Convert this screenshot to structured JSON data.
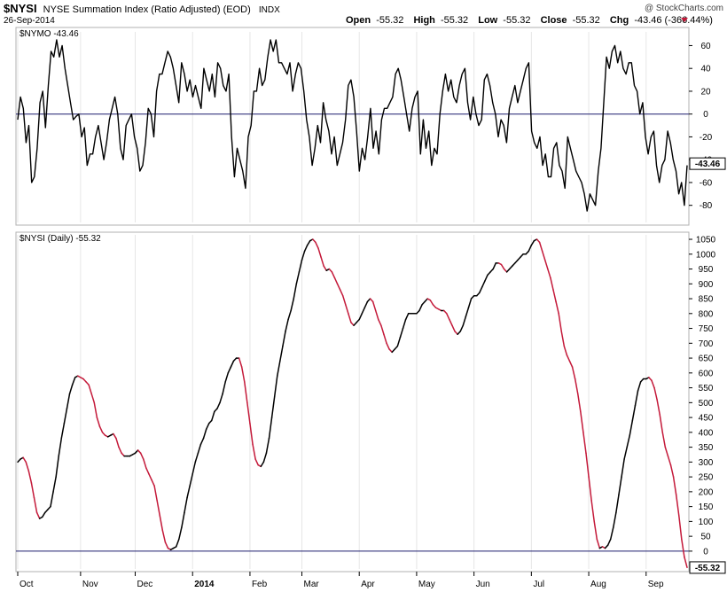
{
  "header": {
    "symbol": "$NYSI",
    "description": "NYSE Summation Index (Ratio Adjusted) (EOD)",
    "exchange": "INDX",
    "date": "26-Sep-2014",
    "open_label": "Open",
    "open_value": "-55.32",
    "high_label": "High",
    "high_value": "-55.32",
    "low_label": "Low",
    "low_value": "-55.32",
    "close_label": "Close",
    "close_value": "-55.32",
    "chg_label": "Chg",
    "chg_value": "-43.46 (-366.44%)",
    "watermark": "@ StockCharts.com",
    "down_color": "#c41a3a"
  },
  "chart_data": [
    {
      "type": "line",
      "panel": "top",
      "legend": "$NYMO -43.46",
      "last_value_badge": "-43.46",
      "line_color": "#000000",
      "zero_line_color": "#1c1c6e",
      "ylim": [
        -95,
        72
      ],
      "yticks": [
        60,
        40,
        20,
        0,
        -20,
        -40,
        -60,
        -80
      ],
      "yticklabels": [
        "60",
        "40",
        "20",
        "0",
        "-20",
        "-40",
        "-60",
        "-80"
      ],
      "last_value": -43.46,
      "values": [
        -5,
        15,
        5,
        -25,
        -10,
        -60,
        -55,
        -30,
        10,
        20,
        -12,
        25,
        55,
        50,
        65,
        50,
        60,
        40,
        25,
        10,
        -5,
        -2,
        0,
        -20,
        -12,
        -45,
        -35,
        -35,
        -20,
        -10,
        -25,
        -40,
        -25,
        -5,
        5,
        15,
        0,
        -30,
        -40,
        -10,
        -5,
        0,
        -20,
        -30,
        -50,
        -45,
        -25,
        5,
        0,
        -20,
        20,
        35,
        35,
        45,
        55,
        50,
        40,
        25,
        10,
        45,
        35,
        20,
        30,
        15,
        25,
        15,
        5,
        40,
        30,
        20,
        35,
        15,
        45,
        40,
        25,
        20,
        35,
        -20,
        -55,
        -30,
        -40,
        -50,
        -65,
        -20,
        -10,
        20,
        20,
        40,
        25,
        30,
        50,
        65,
        55,
        65,
        45,
        45,
        40,
        35,
        45,
        20,
        35,
        45,
        40,
        20,
        -5,
        -20,
        -45,
        -30,
        -10,
        -25,
        10,
        -5,
        -15,
        -35,
        -20,
        -45,
        -35,
        -25,
        -5,
        25,
        30,
        15,
        -15,
        -50,
        -30,
        -40,
        -20,
        5,
        -30,
        -15,
        -35,
        -5,
        5,
        5,
        10,
        15,
        35,
        40,
        30,
        15,
        0,
        -15,
        5,
        15,
        20,
        -35,
        -5,
        -30,
        -15,
        -45,
        -30,
        -35,
        0,
        20,
        35,
        20,
        30,
        15,
        10,
        25,
        35,
        40,
        10,
        -5,
        15,
        0,
        -10,
        -5,
        30,
        35,
        25,
        10,
        0,
        -20,
        -5,
        -10,
        -25,
        5,
        15,
        25,
        10,
        20,
        30,
        40,
        45,
        -15,
        -25,
        -30,
        -20,
        -45,
        -35,
        -55,
        -55,
        -30,
        -25,
        -45,
        -50,
        -65,
        -20,
        -30,
        -40,
        -50,
        -55,
        -60,
        -70,
        -85,
        -70,
        -75,
        -80,
        -50,
        -30,
        10,
        50,
        40,
        55,
        60,
        45,
        55,
        40,
        35,
        45,
        45,
        25,
        20,
        0,
        10,
        -20,
        -35,
        -20,
        -15,
        -45,
        -60,
        -45,
        -40,
        -15,
        -25,
        -40,
        -50,
        -70,
        -60,
        -80,
        -45
      ]
    },
    {
      "type": "line",
      "panel": "bottom",
      "legend": "$NYSI (Daily) -55.32",
      "last_value_badge": "-55.32",
      "rising_color": "#000000",
      "falling_color": "#c41a3a",
      "zero_line_color": "#1c1c6e",
      "ylim": [
        -60,
        1065
      ],
      "yticks": [
        1050,
        1000,
        950,
        900,
        850,
        800,
        750,
        700,
        650,
        600,
        550,
        500,
        450,
        400,
        350,
        300,
        250,
        200,
        150,
        100,
        50,
        0
      ],
      "yticklabels": [
        "1050",
        "1000",
        "950",
        "900",
        "850",
        "800",
        "750",
        "700",
        "650",
        "600",
        "550",
        "500",
        "450",
        "400",
        "350",
        "300",
        "250",
        "200",
        "150",
        "100",
        "50",
        "0"
      ],
      "last_value": -55.32,
      "x_month_labels": [
        {
          "label": "Oct",
          "index": 0,
          "bold": false
        },
        {
          "label": "Nov",
          "index": 23,
          "bold": false
        },
        {
          "label": "Dec",
          "index": 43,
          "bold": false
        },
        {
          "label": "2014",
          "index": 64,
          "bold": true
        },
        {
          "label": "Feb",
          "index": 85,
          "bold": false
        },
        {
          "label": "Mar",
          "index": 104,
          "bold": false
        },
        {
          "label": "Apr",
          "index": 125,
          "bold": false
        },
        {
          "label": "May",
          "index": 146,
          "bold": false
        },
        {
          "label": "Jun",
          "index": 167,
          "bold": false
        },
        {
          "label": "Jul",
          "index": 188,
          "bold": false
        },
        {
          "label": "Aug",
          "index": 209,
          "bold": false
        },
        {
          "label": "Sep",
          "index": 230,
          "bold": false
        }
      ],
      "values": [
        300,
        310,
        315,
        300,
        270,
        230,
        180,
        130,
        110,
        115,
        130,
        140,
        150,
        200,
        250,
        320,
        380,
        430,
        480,
        530,
        560,
        585,
        590,
        585,
        580,
        570,
        560,
        530,
        500,
        450,
        420,
        400,
        390,
        385,
        390,
        395,
        380,
        350,
        330,
        320,
        320,
        320,
        325,
        330,
        340,
        330,
        310,
        280,
        260,
        240,
        220,
        170,
        120,
        70,
        30,
        10,
        5,
        10,
        15,
        40,
        80,
        130,
        180,
        220,
        260,
        300,
        330,
        360,
        380,
        410,
        430,
        440,
        470,
        480,
        500,
        530,
        570,
        600,
        620,
        640,
        650,
        650,
        620,
        570,
        500,
        430,
        360,
        310,
        290,
        285,
        300,
        330,
        380,
        450,
        520,
        590,
        640,
        690,
        740,
        780,
        810,
        850,
        900,
        940,
        980,
        1010,
        1030,
        1045,
        1050,
        1040,
        1020,
        990,
        960,
        945,
        950,
        940,
        920,
        900,
        880,
        860,
        830,
        800,
        770,
        760,
        770,
        780,
        800,
        820,
        840,
        850,
        840,
        810,
        780,
        760,
        730,
        700,
        680,
        670,
        680,
        690,
        720,
        750,
        780,
        800,
        800,
        800,
        800,
        810,
        830,
        840,
        850,
        845,
        830,
        820,
        815,
        810,
        810,
        800,
        780,
        760,
        740,
        730,
        740,
        760,
        790,
        820,
        850,
        860,
        860,
        870,
        890,
        910,
        930,
        940,
        950,
        970,
        970,
        965,
        950,
        940,
        950,
        960,
        970,
        980,
        990,
        1000,
        1000,
        1010,
        1030,
        1045,
        1050,
        1040,
        1010,
        980,
        950,
        920,
        880,
        840,
        800,
        740,
        690,
        660,
        640,
        620,
        580,
        530,
        470,
        400,
        330,
        250,
        170,
        100,
        40,
        10,
        15,
        10,
        20,
        40,
        80,
        130,
        190,
        250,
        310,
        350,
        390,
        440,
        490,
        540,
        570,
        580,
        580,
        585,
        575,
        550,
        510,
        460,
        400,
        350,
        320,
        290,
        250,
        190,
        120,
        40,
        -20,
        -55
      ]
    }
  ]
}
